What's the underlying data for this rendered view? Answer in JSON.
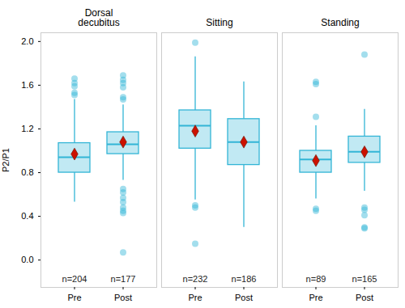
{
  "chart_data": {
    "type": "box",
    "ylabel": "P2/P1",
    "color": "#33b5d6",
    "ylim": [
      -0.25,
      2.08
    ],
    "yticks": [
      {
        "value": 0,
        "label": "0.0"
      },
      0.4,
      0.8,
      1.2,
      1.6,
      {
        "value": 2,
        "label": "2.0"
      }
    ],
    "facets": [
      {
        "title": "Dorsal decubitus",
        "categories": [
          "Pre",
          "Post"
        ],
        "boxes": [
          {
            "whisker_low": 0.53,
            "q1": 0.8,
            "median": 0.94,
            "q3": 1.07,
            "whisker_high": 1.47,
            "mean": 0.97,
            "outliers": [
              1.66,
              1.62,
              1.59,
              1.53,
              1.51
            ],
            "n_label": "n=204"
          },
          {
            "whisker_low": 0.73,
            "q1": 0.97,
            "median": 1.06,
            "q3": 1.17,
            "whisker_high": 1.42,
            "mean": 1.08,
            "outliers": [
              1.69,
              1.65,
              1.62,
              1.58,
              1.49,
              1.47,
              0.65,
              0.62,
              0.57,
              0.53,
              0.48,
              0.45,
              0.43,
              0.07
            ],
            "n_label": "n=177"
          }
        ]
      },
      {
        "title": "Sitting",
        "categories": [
          "Pre",
          "Post"
        ],
        "boxes": [
          {
            "whisker_low": 0.55,
            "q1": 1.02,
            "median": 1.23,
            "q3": 1.37,
            "whisker_high": 1.86,
            "mean": 1.18,
            "outliers": [
              1.99,
              0.5,
              0.48,
              0.15
            ],
            "n_label": "n=232"
          },
          {
            "whisker_low": 0.3,
            "q1": 0.87,
            "median": 1.08,
            "q3": 1.29,
            "whisker_high": 1.63,
            "mean": 1.08,
            "outliers": [],
            "n_label": "n=186"
          }
        ]
      },
      {
        "title": "Standing",
        "categories": [
          "Pre",
          "Post"
        ],
        "boxes": [
          {
            "whisker_low": 0.56,
            "q1": 0.8,
            "median": 0.92,
            "q3": 1.0,
            "whisker_high": 1.23,
            "mean": 0.91,
            "outliers": [
              1.63,
              1.61,
              1.31,
              0.47,
              0.45
            ],
            "n_label": "n=89"
          },
          {
            "whisker_low": 0.63,
            "q1": 0.89,
            "median": 0.99,
            "q3": 1.13,
            "whisker_high": 1.38,
            "mean": 0.99,
            "outliers": [
              1.88,
              0.48,
              0.46,
              0.41,
              0.3,
              0.29
            ],
            "n_label": "n=165"
          }
        ]
      }
    ]
  }
}
